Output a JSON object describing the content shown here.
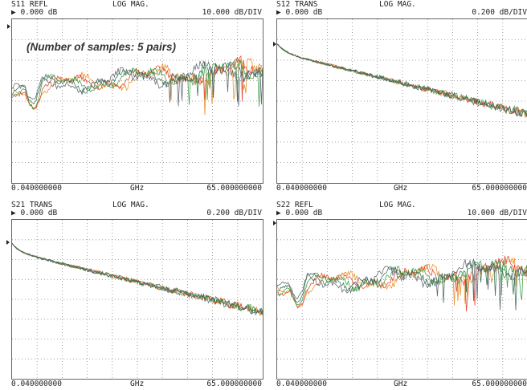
{
  "annotation": "(Number of samples: 5 pairs)",
  "colors": {
    "trace_colors": [
      "#e8871a",
      "#e03c1c",
      "#2f9a3c",
      "#2f6a4a",
      "#555b66"
    ],
    "grid": "#8a8a8a",
    "frame": "#666666"
  },
  "panels": [
    {
      "param": "S11 REFL",
      "format": "LOG MAG.",
      "ref": "▶ 0.000 dB",
      "scale": "10.000 dB/DIV",
      "x_start": "0.040000000",
      "x_unit": "GHz",
      "x_stop": "65.000000000",
      "ref_position": 0.05
    },
    {
      "param": "S12 TRANS",
      "format": "LOG MAG.",
      "ref": "▶ 0.000 dB",
      "scale": "0.200 dB/DIV",
      "x_start": "0.040000000",
      "x_unit": "GHz",
      "x_stop": "65.000000000",
      "ref_position": 0.15
    },
    {
      "param": "S21 TRANS",
      "format": "LOG MAG.",
      "ref": "▶ 0.000 dB",
      "scale": "0.200 dB/DIV",
      "x_start": "0.040000000",
      "x_unit": "GHz",
      "x_stop": "65.000000000",
      "ref_position": 0.15
    },
    {
      "param": "S22 REFL",
      "format": "LOG MAG.",
      "ref": "▶ 0.000 dB",
      "scale": "10.000 dB/DIV",
      "x_start": "0.040000000",
      "x_unit": "GHz",
      "x_stop": "65.000000000",
      "ref_position": 0.05
    }
  ]
}
